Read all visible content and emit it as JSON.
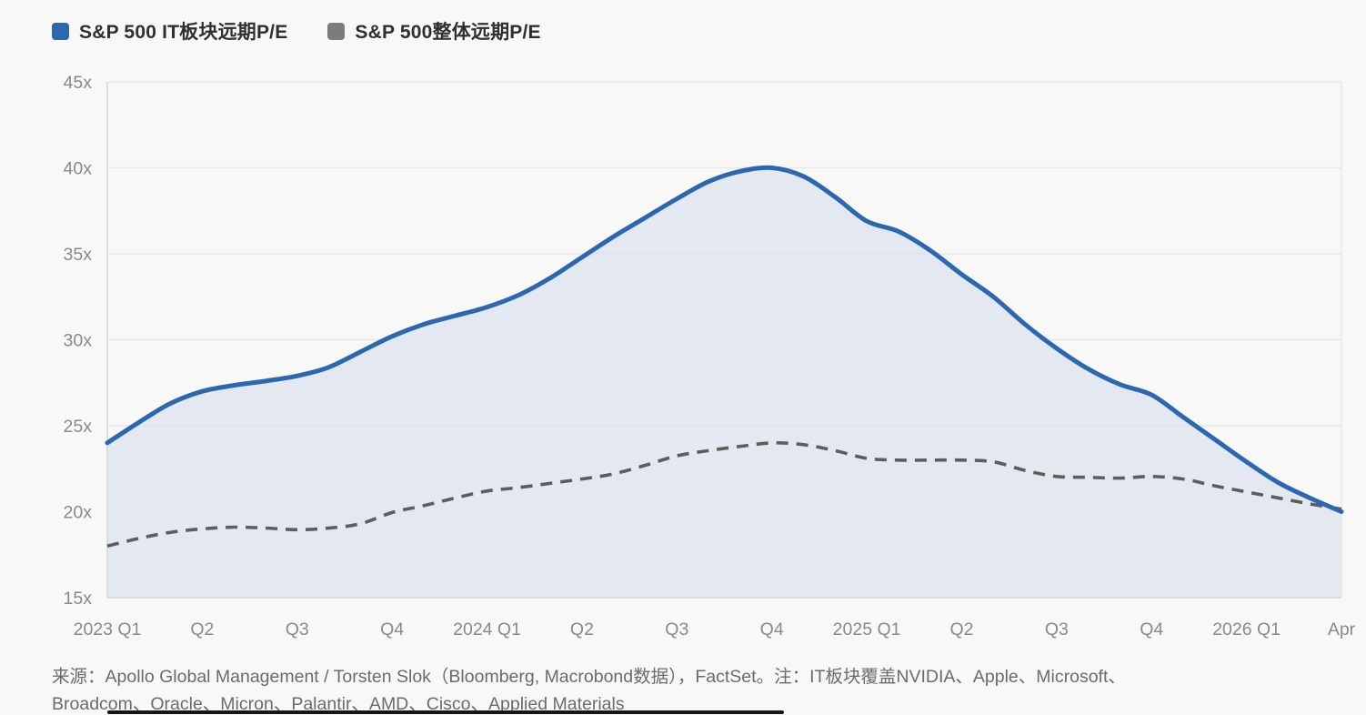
{
  "legend": {
    "items": [
      {
        "label": "S&P 500 IT板块远期P/E",
        "color": "#2c68af"
      },
      {
        "label": "S&P 500整体远期P/E",
        "color": "#7c7c7a"
      }
    ]
  },
  "source_note": {
    "line1": "来源：Apollo Global Management / Torsten Slok（Bloomberg, Macrobond数据），FactSet。注：IT板块覆盖NVIDIA、Apple、Microsoft、",
    "line2": "Broadcom、Oracle、Micron、Palantir、AMD、Cisco、Applied Materials"
  },
  "chart_data": {
    "type": "area",
    "title": "",
    "xlabel": "",
    "ylabel": "",
    "ylim": [
      15,
      45
    ],
    "y_ticks": [
      {
        "value": 45,
        "label": "45x"
      },
      {
        "value": 40,
        "label": "40x"
      },
      {
        "value": 35,
        "label": "35x"
      },
      {
        "value": 30,
        "label": "30x"
      },
      {
        "value": 25,
        "label": "25x"
      },
      {
        "value": 20,
        "label": "20x"
      },
      {
        "value": 15,
        "label": "15x"
      }
    ],
    "x_tick_labels": [
      "2023 Q1",
      "Q2",
      "Q3",
      "Q4",
      "2024 Q1",
      "Q2",
      "Q3",
      "Q4",
      "2025 Q1",
      "Q2",
      "Q3",
      "Q4",
      "2026 Q1",
      "Apr"
    ],
    "x_tick_indices": [
      0,
      3,
      6,
      9,
      12,
      15,
      18,
      21,
      24,
      27,
      30,
      33,
      36,
      39
    ],
    "grid": "horizontal",
    "legend_position": "top-left",
    "x": [
      "2023-01",
      "2023-02",
      "2023-03",
      "2023-04",
      "2023-05",
      "2023-06",
      "2023-07",
      "2023-08",
      "2023-09",
      "2023-10",
      "2023-11",
      "2023-12",
      "2024-01",
      "2024-02",
      "2024-03",
      "2024-04",
      "2024-05",
      "2024-06",
      "2024-07",
      "2024-08",
      "2024-09",
      "2024-10",
      "2024-11",
      "2024-12",
      "2025-01",
      "2025-02",
      "2025-03",
      "2025-04",
      "2025-05",
      "2025-06",
      "2025-07",
      "2025-08",
      "2025-09",
      "2025-10",
      "2025-11",
      "2025-12",
      "2026-01",
      "2026-02",
      "2026-03",
      "2026-04"
    ],
    "series": [
      {
        "name": "S&P 500 IT板块远期P/E",
        "style": "solid",
        "color": "#2c68af",
        "fill": "rgba(222,228,239,0.8)",
        "values": [
          24.0,
          25.2,
          26.3,
          27.0,
          27.35,
          27.6,
          27.9,
          28.4,
          29.3,
          30.2,
          30.9,
          31.4,
          31.9,
          32.6,
          33.6,
          34.8,
          36.0,
          37.1,
          38.2,
          39.2,
          39.8,
          40.0,
          39.5,
          38.3,
          36.9,
          36.3,
          35.2,
          33.8,
          32.5,
          30.9,
          29.5,
          28.3,
          27.4,
          26.8,
          25.5,
          24.2,
          22.9,
          21.7,
          20.8,
          20.0
        ]
      },
      {
        "name": "S&P 500整体远期P/E",
        "style": "dashed",
        "color": "#5d5d5b",
        "values": [
          18.0,
          18.45,
          18.8,
          19.0,
          19.1,
          19.05,
          18.95,
          19.05,
          19.3,
          19.95,
          20.35,
          20.8,
          21.2,
          21.4,
          21.65,
          21.9,
          22.2,
          22.7,
          23.25,
          23.55,
          23.8,
          24.0,
          23.9,
          23.55,
          23.1,
          23.0,
          23.0,
          23.0,
          22.9,
          22.4,
          22.05,
          22.0,
          21.95,
          22.05,
          21.9,
          21.5,
          21.15,
          20.8,
          20.45,
          20.15
        ]
      }
    ],
    "colors": {
      "background": "#f8f8f6",
      "gridline": "#e7e7e5",
      "axis_line": "#d5d5d3",
      "tick_text": "#8a8a88"
    }
  }
}
